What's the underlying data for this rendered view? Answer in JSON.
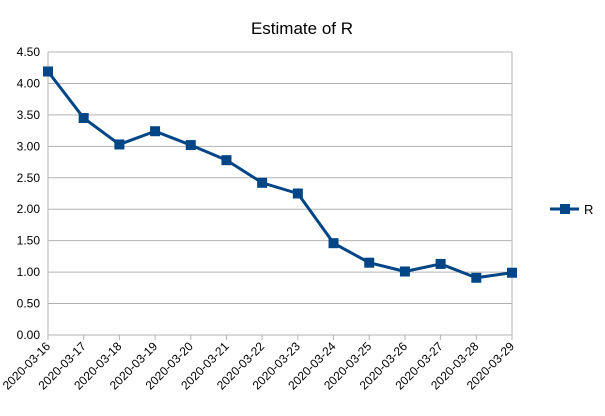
{
  "chart_data": {
    "type": "line",
    "title": "Estimate of R",
    "xlabel": "",
    "ylabel": "",
    "categories": [
      "2020-03-16",
      "2020-03-17",
      "2020-03-18",
      "2020-03-19",
      "2020-03-20",
      "2020-03-21",
      "2020-03-22",
      "2020-03-23",
      "2020-03-24",
      "2020-03-25",
      "2020-03-26",
      "2020-03-27",
      "2020-03-28",
      "2020-03-29"
    ],
    "series": [
      {
        "name": "R",
        "values": [
          4.19,
          3.45,
          3.03,
          3.24,
          3.02,
          2.78,
          2.42,
          2.25,
          1.46,
          1.15,
          1.01,
          1.13,
          0.91,
          0.99
        ],
        "color": "#004586"
      }
    ],
    "ylim": [
      0,
      4.5
    ],
    "yticks": [
      "0.00",
      "0.50",
      "1.00",
      "1.50",
      "2.00",
      "2.50",
      "3.00",
      "3.50",
      "4.00",
      "4.50"
    ],
    "grid": "horizontal",
    "legend": "right",
    "marker": "square"
  }
}
